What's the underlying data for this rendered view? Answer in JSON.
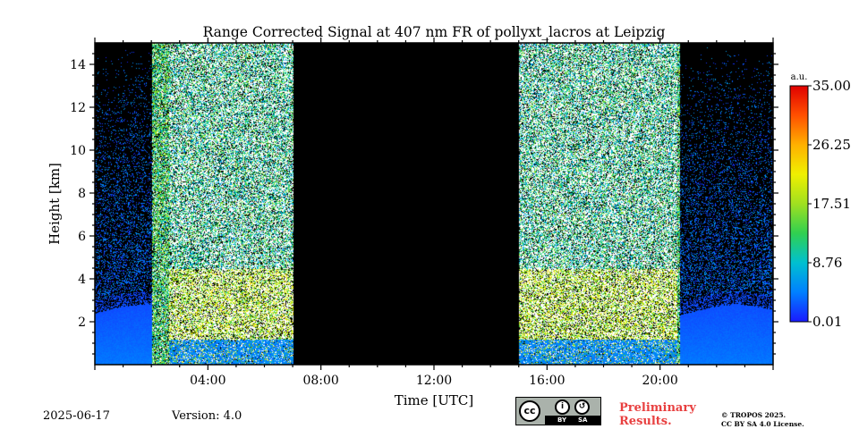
{
  "chart_data": {
    "type": "heatmap",
    "title": "Range Corrected Signal at 407 nm FR of pollyxt_lacros at Leipzig",
    "xlabel": "Time [UTC]",
    "ylabel": "Height [km]",
    "xlim": [
      0,
      24
    ],
    "ylim": [
      0,
      15
    ],
    "x_ticks": [
      {
        "value": 4,
        "label": "04:00"
      },
      {
        "value": 8,
        "label": "08:00"
      },
      {
        "value": 12,
        "label": "12:00"
      },
      {
        "value": 16,
        "label": "16:00"
      },
      {
        "value": 20,
        "label": "20:00"
      }
    ],
    "y_ticks": [
      {
        "value": 2,
        "label": "2"
      },
      {
        "value": 4,
        "label": "4"
      },
      {
        "value": 6,
        "label": "6"
      },
      {
        "value": 8,
        "label": "8"
      },
      {
        "value": 10,
        "label": "10"
      },
      {
        "value": 12,
        "label": "12"
      },
      {
        "value": 14,
        "label": "14"
      }
    ],
    "no_data_periods": [
      [
        7.0,
        15.0
      ]
    ],
    "colorbar": {
      "unit": "a.u.",
      "min": 0.01,
      "max": 35.0,
      "ticks": [
        "0.01",
        "8.76",
        "17.51",
        "26.25",
        "35.00"
      ],
      "colors": [
        "#1a1aff",
        "#0080ff",
        "#00c0d0",
        "#30d050",
        "#a0e020",
        "#f0f000",
        "#ffb000",
        "#ff5000",
        "#e00000"
      ]
    }
  },
  "footer": {
    "date": "2025-06-17",
    "version": "Version: 4.0",
    "preliminary_line1": "Preliminary",
    "preliminary_line2": "Results.",
    "copyright_line1": "© TROPOS 2025.",
    "copyright_line2": "CC BY SA 4.0 License.",
    "cc_badge": {
      "cc": "cc",
      "by": "BY",
      "sa": "SA"
    }
  }
}
